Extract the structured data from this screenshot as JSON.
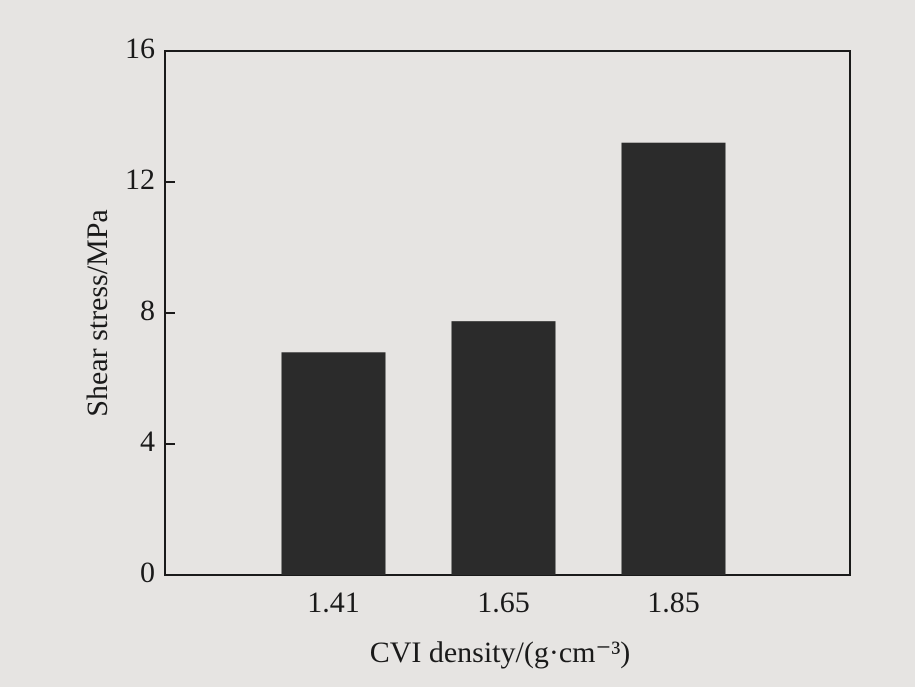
{
  "chart_data": {
    "type": "bar",
    "categories": [
      "1.41",
      "1.65",
      "1.85"
    ],
    "values": [
      6.8,
      7.75,
      13.2
    ],
    "color": "#2b2b2b",
    "ylim": [
      0,
      16
    ],
    "yticks": [
      0,
      4,
      8,
      12,
      16
    ],
    "xlabel": "CVI density/(g·cm⁻³)",
    "ylabel": "Shear stress/MPa",
    "grid": false
  }
}
